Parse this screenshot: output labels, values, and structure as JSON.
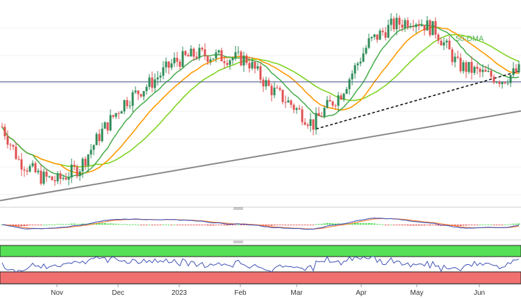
{
  "chart_data": {
    "type": "candlestick",
    "x_labels": [
      "Nov",
      "Dec",
      "2023",
      "Feb",
      "Mar",
      "Apr",
      "May",
      "Jun"
    ],
    "colors": {
      "up": "#2e8b57",
      "down": "#e05050",
      "ma50": "#4caf50",
      "ma100": "#ff9800",
      "ma200": "#7ed321",
      "trend_support": "#888888",
      "dashed_support": "#111111",
      "horizontal": "#3a4f8a",
      "macd_line": "#3f51b5",
      "signal_line": "#ff7f32",
      "hist_pos": "#3cd33c",
      "hist_neg": "#e53935",
      "rsi_line": "#3f51b5",
      "overbought_zone": "#55e055",
      "oversold_zone": "#f07070"
    },
    "annotations": {
      "ma50_label": "50-DMA"
    },
    "price": {
      "start": 101.0,
      "seed": 7,
      "segments": [
        [
          0,
          101.0
        ],
        [
          6,
          98.0
        ],
        [
          14,
          96.5
        ],
        [
          20,
          96.2
        ],
        [
          28,
          97.4
        ],
        [
          36,
          100.6
        ],
        [
          44,
          103.2
        ],
        [
          54,
          105.0
        ],
        [
          62,
          106.8
        ],
        [
          70,
          107.5
        ],
        [
          80,
          107.2
        ],
        [
          88,
          107.0
        ],
        [
          96,
          104.5
        ],
        [
          104,
          103.0
        ],
        [
          112,
          101.2
        ],
        [
          116,
          102.5
        ],
        [
          122,
          104.0
        ],
        [
          132,
          108.5
        ],
        [
          140,
          110.0
        ],
        [
          148,
          110.6
        ],
        [
          156,
          109.6
        ],
        [
          164,
          106.5
        ],
        [
          172,
          105.8
        ],
        [
          180,
          105.2
        ],
        [
          186,
          106.0
        ]
      ]
    },
    "macd": {
      "seed": 11
    },
    "rsi": {
      "seed": 23
    }
  }
}
